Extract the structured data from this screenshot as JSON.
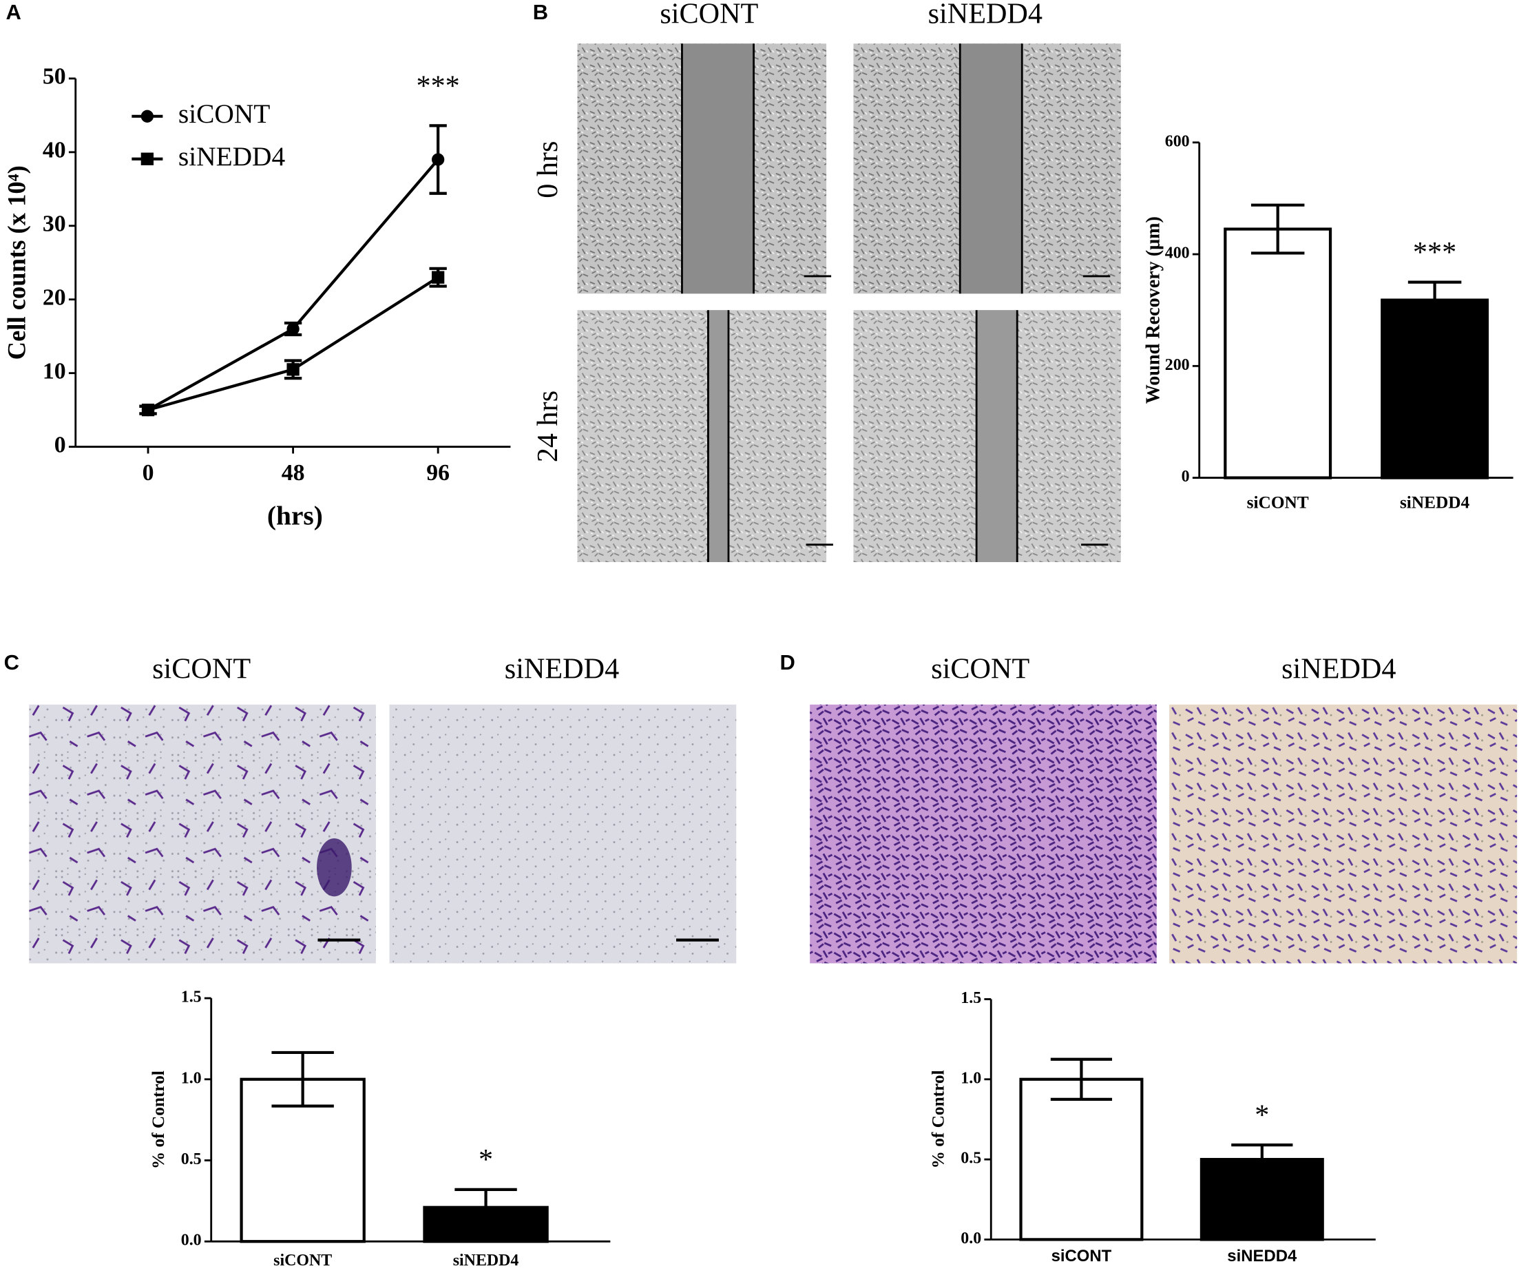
{
  "panel_labels": [
    "A",
    "B",
    "C",
    "D"
  ],
  "micrographs": {
    "B": {
      "columns": [
        "siCONT",
        "siNEDD4"
      ],
      "rows": [
        "0 hrs",
        "24 hrs"
      ]
    },
    "C": {
      "columns": [
        "siCONT",
        "siNEDD4"
      ]
    },
    "D": {
      "columns": [
        "siCONT",
        "siNEDD4"
      ]
    }
  },
  "chart_data": [
    {
      "type": "line",
      "x": [
        0,
        48,
        96
      ],
      "xlim": [
        -24,
        120
      ],
      "xticks": [
        0,
        48,
        96
      ],
      "ylim": [
        0,
        50
      ],
      "yticks": [
        0,
        10,
        20,
        30,
        40,
        50
      ],
      "xlabel": "(hrs)",
      "ylabel": "Cell counts (x 10⁴)",
      "legend": "upper left",
      "series": [
        {
          "name": "siCONT",
          "color": "#000000",
          "marker": "circle",
          "values": [
            5,
            16,
            39
          ],
          "errors": [
            0.5,
            0.8,
            4.6
          ]
        },
        {
          "name": "siNEDD4",
          "color": "#000000",
          "marker": "square",
          "values": [
            5,
            10.5,
            23
          ],
          "errors": [
            0.5,
            1.2,
            1.2
          ]
        }
      ],
      "annotations": [
        {
          "text": "***",
          "x": 96
        }
      ]
    },
    {
      "type": "bar",
      "categories": [
        "siCONT",
        "siNEDD4"
      ],
      "values": [
        445,
        318
      ],
      "errors": [
        43,
        32
      ],
      "colors": [
        "#ffffff",
        "#000000"
      ],
      "ylim": [
        0,
        600
      ],
      "yticks": [
        0,
        200,
        400,
        600
      ],
      "ylabel": "Wound Recovery (μm)",
      "annotations": [
        {
          "text": "***",
          "category": "siNEDD4"
        }
      ]
    },
    {
      "type": "bar",
      "categories": [
        "siCONT",
        "siNEDD4"
      ],
      "values": [
        1.0,
        0.21
      ],
      "errors": [
        0.165,
        0.11
      ],
      "colors": [
        "#ffffff",
        "#000000"
      ],
      "ylim": [
        0,
        1.5
      ],
      "yticks": [
        {
          "value": 0,
          "label": "0.0"
        },
        {
          "value": 0.5,
          "label": "0.5"
        },
        {
          "value": 1,
          "label": "1.0"
        },
        {
          "value": 1.5,
          "label": "1.5"
        }
      ],
      "ylabel": "% of Control",
      "annotations": [
        {
          "text": "*",
          "category": "siNEDD4"
        }
      ]
    },
    {
      "type": "bar",
      "categories": [
        "siCONT",
        "siNEDD4"
      ],
      "values": [
        1.0,
        0.5
      ],
      "errors": [
        0.125,
        0.09
      ],
      "colors": [
        "#ffffff",
        "#000000"
      ],
      "ylim": [
        0,
        1.5
      ],
      "yticks": [
        {
          "value": 0,
          "label": "0.0"
        },
        {
          "value": 0.5,
          "label": "0.5"
        },
        {
          "value": 1,
          "label": "1.0"
        },
        {
          "value": 1.5,
          "label": "1.5"
        }
      ],
      "ylabel": "% of Control",
      "annotations": [
        {
          "text": "*",
          "category": "siNEDD4"
        }
      ]
    }
  ]
}
